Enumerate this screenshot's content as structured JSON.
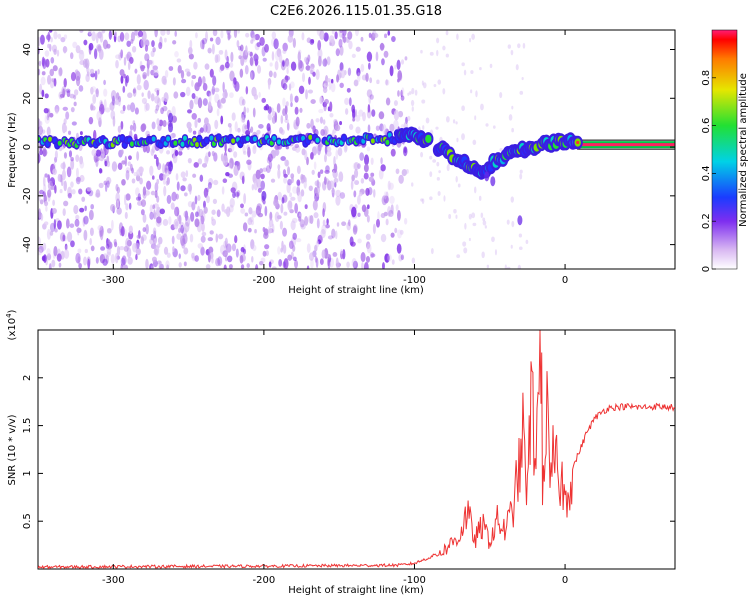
{
  "title": "C2E6.2026.115.01.35.G18",
  "chart_data": [
    {
      "type": "heatmap",
      "title": "C2E6.2026.115.01.35.G18",
      "xlabel": "Height of straight line (km)",
      "ylabel": "Frequency (Hz)",
      "xlim": [
        -350,
        73
      ],
      "ylim": [
        -50,
        48
      ],
      "x_ticks": [
        -300,
        -200,
        -100,
        0
      ],
      "y_ticks": [
        -40,
        -20,
        0,
        20,
        40
      ],
      "colorbar": {
        "label": "Normalized spectral amplitude",
        "range": [
          0,
          1
        ],
        "ticks": [
          0.0,
          0.2,
          0.4,
          0.6,
          0.8
        ]
      },
      "signal_track": [
        {
          "x": -350,
          "y": 2
        },
        {
          "x": -120,
          "y": 3
        },
        {
          "x": -105,
          "y": 5
        },
        {
          "x": -90,
          "y": 2
        },
        {
          "x": -70,
          "y": -5
        },
        {
          "x": -55,
          "y": -10
        },
        {
          "x": -45,
          "y": -5
        },
        {
          "x": -30,
          "y": -1
        },
        {
          "x": -15,
          "y": 1
        },
        {
          "x": 0,
          "y": 2
        },
        {
          "x": 73,
          "y": 1
        }
      ]
    },
    {
      "type": "line",
      "xlabel": "Height of straight line (km)",
      "ylabel": "SNR (10 * v/v)",
      "y_multiplier": "(x10^4)",
      "xlim": [
        -350,
        73
      ],
      "ylim": [
        0,
        25000
      ],
      "x_ticks": [
        -300,
        -200,
        -100,
        0
      ],
      "y_ticks": [
        0.5,
        1.0,
        1.5,
        2.0
      ],
      "series": [
        {
          "color": "#ee3333",
          "x": [
            -350,
            -300,
            -200,
            -150,
            -110,
            -100,
            -90,
            -80,
            -70,
            -65,
            -60,
            -55,
            -50,
            -45,
            -40,
            -35,
            -30,
            -28,
            -25,
            -22,
            -20,
            -18,
            -16,
            -15,
            -12,
            -10,
            -8,
            -5,
            -2,
            0,
            5,
            10,
            15,
            20,
            25,
            30,
            40,
            50,
            60,
            73
          ],
          "y": [
            200,
            250,
            300,
            350,
            400,
            600,
            1200,
            2000,
            3500,
            6000,
            3000,
            4500,
            3000,
            5000,
            4000,
            6000,
            11000,
            14000,
            8000,
            19000,
            12000,
            16000,
            25000,
            9000,
            17000,
            7000,
            12000,
            10000,
            9000,
            7000,
            10500,
            12500,
            14500,
            15800,
            16500,
            16900,
            17000,
            16900,
            17000,
            16900
          ]
        }
      ]
    }
  ]
}
